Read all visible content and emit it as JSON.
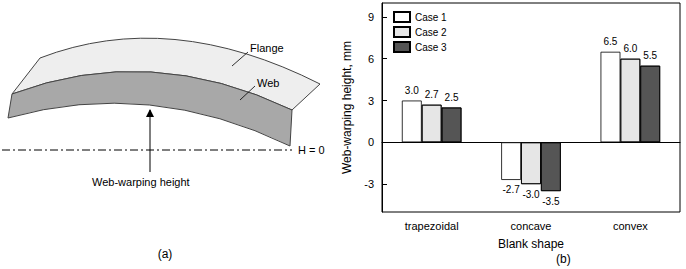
{
  "diagram": {
    "caption": "(a)",
    "labels": {
      "flange": "Flange",
      "web": "Web",
      "height": "Web-warping height",
      "datum": "H = 0"
    }
  },
  "chart_data": {
    "type": "bar",
    "caption": "(b)",
    "x_label": "Blank shape",
    "y_label": "Web-warping height, mm",
    "categories": [
      "trapezoidal",
      "concave",
      "convex"
    ],
    "series": [
      {
        "name": "Case 1",
        "color": "#ffffff",
        "values": [
          3.0,
          -2.7,
          6.5
        ],
        "value_labels": [
          "3.0",
          "-2.7",
          "6.5"
        ]
      },
      {
        "name": "Case 2",
        "color": "#e6e6e6",
        "values": [
          2.7,
          -3.0,
          6.0
        ],
        "value_labels": [
          "2.7",
          "-3.0",
          "6.0"
        ]
      },
      {
        "name": "Case 3",
        "color": "#555555",
        "values": [
          2.5,
          -3.5,
          5.5
        ],
        "value_labels": [
          "2.5",
          "-3.5",
          "5.5"
        ]
      }
    ],
    "ylim": [
      -5,
      10
    ],
    "yticks": [
      -3,
      0,
      3,
      6,
      9
    ],
    "grid": false,
    "legend": "upper left",
    "data_labels": true
  }
}
